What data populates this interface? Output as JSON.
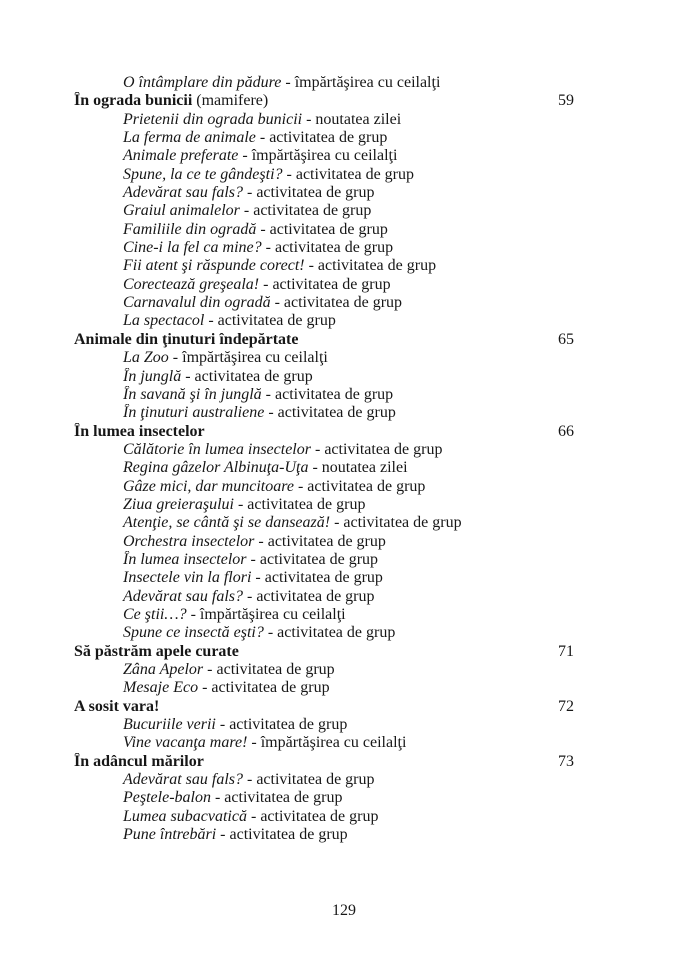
{
  "page": {
    "background": "#ffffff",
    "text_color": "#171717",
    "footer_page_number": "129"
  },
  "toc": {
    "separator": " - ",
    "lines": [
      {
        "type": "entry",
        "title": "O întâmplare din pădure",
        "desc": "împărtăşirea cu ceilalţi"
      },
      {
        "type": "section",
        "title": "În ograda bunicii",
        "note": "(mamifere)",
        "page": "59"
      },
      {
        "type": "entry",
        "title": "Prietenii din ograda bunicii",
        "desc": "noutatea zilei"
      },
      {
        "type": "entry",
        "title": "La ferma de animale",
        "desc": "activitatea de grup"
      },
      {
        "type": "entry",
        "title": "Animale preferate",
        "desc": "împărtăşirea cu ceilalţi"
      },
      {
        "type": "entry",
        "title": "Spune, la ce te gândeşti?",
        "desc": "activitatea de grup"
      },
      {
        "type": "entry",
        "title": "Adevărat sau fals?",
        "desc": "activitatea de grup"
      },
      {
        "type": "entry",
        "title": "Graiul animalelor",
        "desc": "activitatea de grup"
      },
      {
        "type": "entry",
        "title": "Familiile din ogradă",
        "desc": "activitatea de grup"
      },
      {
        "type": "entry",
        "title": "Cine-i la fel ca mine?",
        "desc": "activitatea de grup"
      },
      {
        "type": "entry",
        "title": "Fii atent şi răspunde corect!",
        "desc": "activitatea de grup"
      },
      {
        "type": "entry",
        "title": "Corectează greşeala!",
        "desc": "activitatea de grup"
      },
      {
        "type": "entry",
        "title": "Carnavalul din ogradă",
        "desc": "activitatea de grup"
      },
      {
        "type": "entry",
        "title": "La spectacol",
        "desc": "activitatea de grup"
      },
      {
        "type": "section",
        "title": "Animale din ţinuturi îndepărtate",
        "page": "65"
      },
      {
        "type": "entry",
        "title": "La Zoo",
        "desc": "împărtăşirea cu ceilalţi"
      },
      {
        "type": "entry",
        "title": "În junglă",
        "desc": "activitatea de grup"
      },
      {
        "type": "entry",
        "title": "În savană şi în junglă",
        "desc": "activitatea de grup"
      },
      {
        "type": "entry",
        "title": "În ţinuturi australiene",
        "desc": "activitatea de grup"
      },
      {
        "type": "section",
        "title": "În lumea insectelor",
        "page": "66"
      },
      {
        "type": "entry",
        "title": "Călătorie în lumea insectelor",
        "desc": "activitatea de grup"
      },
      {
        "type": "entry",
        "title": "Regina gâzelor Albinuţa-Uţa",
        "desc": "noutatea zilei"
      },
      {
        "type": "entry",
        "title": "Gâze mici, dar muncitoare",
        "desc": "activitatea de grup"
      },
      {
        "type": "entry",
        "title": "Ziua greieraşului",
        "desc": "activitatea de grup"
      },
      {
        "type": "entry",
        "title": "Atenţie, se cântă şi se dansează!",
        "desc": "activitatea de grup"
      },
      {
        "type": "entry",
        "title": "Orchestra insectelor",
        "desc": "activitatea de grup"
      },
      {
        "type": "entry",
        "title": "În lumea insectelor",
        "desc": "activitatea de grup"
      },
      {
        "type": "entry",
        "title": "Insectele vin la flori",
        "desc": "activitatea de grup"
      },
      {
        "type": "entry",
        "title": "Adevărat sau fals?",
        "desc": "activitatea de grup"
      },
      {
        "type": "entry",
        "title": "Ce ştii…?",
        "desc": "împărtăşirea cu ceilalţi"
      },
      {
        "type": "entry",
        "title": "Spune ce insectă eşti?",
        "desc": "activitatea de grup"
      },
      {
        "type": "section",
        "title": "Să păstrăm apele curate",
        "page": "71"
      },
      {
        "type": "entry",
        "title": "Zâna Apelor",
        "desc": "activitatea de grup"
      },
      {
        "type": "entry",
        "title": "Mesaje Eco",
        "desc": "activitatea de grup"
      },
      {
        "type": "section",
        "title": "A sosit vara!",
        "page": "72"
      },
      {
        "type": "entry",
        "title": "Bucuriile verii",
        "desc": "activitatea de grup"
      },
      {
        "type": "entry",
        "title": "Vine vacanţa mare!",
        "desc": "împărtăşirea cu ceilalţi"
      },
      {
        "type": "section",
        "title": "În adâncul mărilor",
        "page": "73"
      },
      {
        "type": "entry",
        "title": "Adevărat sau fals?",
        "desc": "activitatea de grup"
      },
      {
        "type": "entry",
        "title": "Peştele-balon",
        "desc": "activitatea de grup"
      },
      {
        "type": "entry",
        "title": "Lumea subacvatică",
        "desc": "activitatea de grup"
      },
      {
        "type": "entry",
        "title": "Pune întrebări",
        "desc": "activitatea de grup"
      }
    ]
  }
}
